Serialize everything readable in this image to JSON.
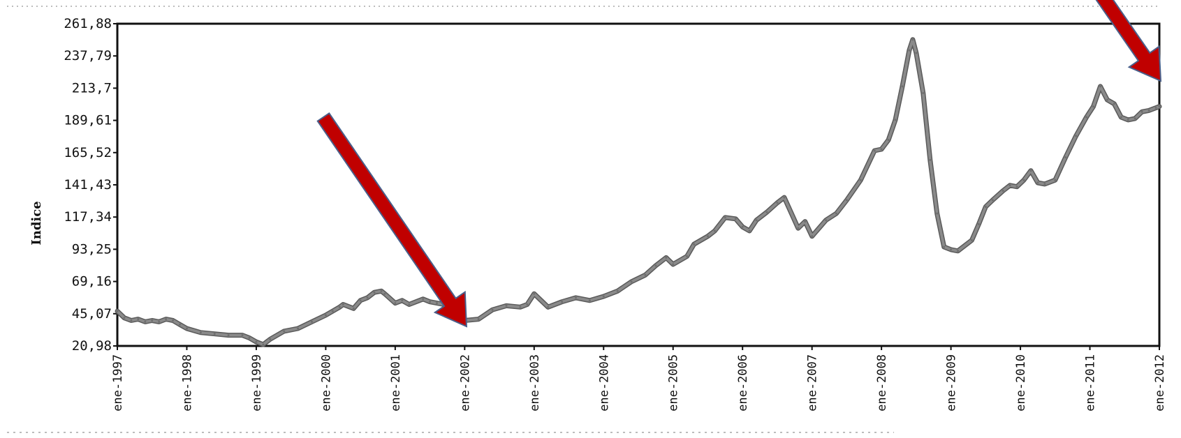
{
  "chart_data": {
    "type": "line",
    "ylabel": "Indice",
    "xlabel": "",
    "title": "",
    "ylim": [
      20.98,
      261.88
    ],
    "yticks": [
      "20,98",
      "45,07",
      "69,16",
      "93,25",
      "117,34",
      "141,43",
      "165,52",
      "189,61",
      "213,7",
      "237,79",
      "261,88"
    ],
    "xticks": [
      "ene-1997",
      "ene-1998",
      "ene-1999",
      "ene-2000",
      "ene-2001",
      "ene-2002",
      "ene-2003",
      "ene-2004",
      "ene-2005",
      "ene-2006",
      "ene-2007",
      "ene-2008",
      "ene-2009",
      "ene-2010",
      "ene-2011",
      "ene-2012"
    ],
    "xlim": [
      1997.0,
      2012.0
    ],
    "grid": false,
    "series": [
      {
        "color": "#8a8a8a",
        "x": [
          1997.0,
          1997.1,
          1997.2,
          1997.3,
          1997.4,
          1997.5,
          1997.6,
          1997.7,
          1997.8,
          1997.9,
          1998.0,
          1998.2,
          1998.4,
          1998.6,
          1998.8,
          1998.9,
          1999.0,
          1999.1,
          1999.2,
          1999.4,
          1999.6,
          1999.8,
          2000.0,
          2000.1,
          2000.2,
          2000.25,
          2000.4,
          2000.5,
          2000.6,
          2000.7,
          2000.8,
          2000.85,
          2001.0,
          2001.1,
          2001.2,
          2001.4,
          2001.5,
          2001.6,
          2001.8,
          2001.9,
          2002.0,
          2002.2,
          2002.4,
          2002.6,
          2002.8,
          2002.9,
          2003.0,
          2003.2,
          2003.4,
          2003.6,
          2003.8,
          2004.0,
          2004.2,
          2004.4,
          2004.6,
          2004.75,
          2004.9,
          2005.0,
          2005.2,
          2005.3,
          2005.5,
          2005.6,
          2005.75,
          2005.9,
          2006.0,
          2006.1,
          2006.2,
          2006.35,
          2006.5,
          2006.6,
          2006.8,
          2006.9,
          2007.0,
          2007.2,
          2007.35,
          2007.5,
          2007.7,
          2007.9,
          2008.0,
          2008.1,
          2008.2,
          2008.3,
          2008.4,
          2008.45,
          2008.5,
          2008.6,
          2008.7,
          2008.8,
          2008.9,
          2009.0,
          2009.1,
          2009.3,
          2009.4,
          2009.5,
          2009.6,
          2009.75,
          2009.85,
          2009.95,
          2010.05,
          2010.15,
          2010.25,
          2010.35,
          2010.5,
          2010.65,
          2010.8,
          2010.95,
          2011.05,
          2011.15,
          2011.25,
          2011.35,
          2011.45,
          2011.55,
          2011.65,
          2011.75,
          2011.85,
          2011.95,
          2012.0
        ],
        "values": [
          47,
          42,
          40,
          41,
          39,
          40,
          39,
          41,
          40,
          37,
          34,
          31,
          30,
          29,
          29,
          27,
          24,
          22,
          26,
          32,
          34,
          39,
          44,
          47,
          50,
          52,
          49,
          55,
          57,
          61,
          62,
          60,
          53,
          55,
          52,
          56,
          54,
          53,
          51,
          48,
          40,
          41,
          48,
          51,
          50,
          52,
          60,
          50,
          54,
          57,
          55,
          58,
          62,
          69,
          74,
          81,
          87,
          82,
          88,
          97,
          103,
          107,
          117,
          116,
          110,
          107,
          115,
          121,
          128,
          132,
          109,
          114,
          103,
          115,
          120,
          130,
          145,
          167,
          168,
          175,
          190,
          215,
          242,
          250,
          240,
          210,
          160,
          120,
          95,
          93,
          92,
          100,
          112,
          125,
          130,
          137,
          141,
          140,
          145,
          152,
          143,
          142,
          145,
          162,
          178,
          192,
          200,
          215,
          205,
          202,
          192,
          190,
          191,
          196,
          197,
          199,
          200
        ]
      }
    ]
  },
  "annotations": [
    {
      "type": "arrow",
      "color": "#c00000",
      "target": "ene-2002 minimum"
    },
    {
      "type": "arrow",
      "color": "#c00000",
      "target": "ene-2012 end value"
    }
  ]
}
